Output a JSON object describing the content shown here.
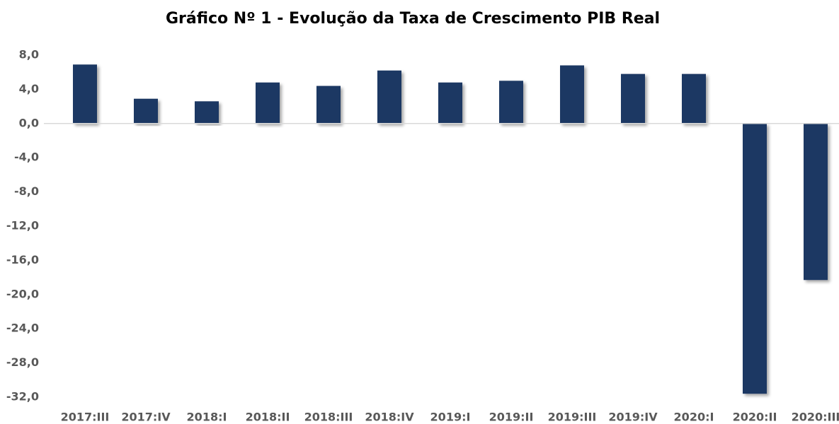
{
  "chart_data": {
    "type": "bar",
    "title": "Gráfico Nº 1 - Evolução da Taxa de Crescimento PIB Real",
    "categories": [
      "2017:III",
      "2017:IV",
      "2018:I",
      "2018:II",
      "2018:III",
      "2018:IV",
      "2019:I",
      "2019:II",
      "2019:III",
      "2019:IV",
      "2020:I",
      "2020:II",
      "2020:III"
    ],
    "values": [
      6.9,
      2.9,
      2.6,
      4.8,
      4.4,
      6.2,
      4.8,
      5.0,
      6.8,
      5.8,
      5.8,
      -31.6,
      -18.3
    ],
    "color": "#1f3864",
    "ylim": [
      -32,
      8
    ],
    "yticks": [
      {
        "value": -32,
        "label": "-32,0"
      },
      {
        "value": -28,
        "label": "-28,0"
      },
      {
        "value": -24,
        "label": "-24,0"
      },
      {
        "value": -20,
        "label": "-20,0"
      },
      {
        "value": -16,
        "label": "-16,0"
      },
      {
        "value": -12,
        "label": "-12,0"
      },
      {
        "value": -8,
        "label": "-8,0"
      },
      {
        "value": -4,
        "label": "-4,0"
      },
      {
        "value": 0,
        "label": "0,0"
      },
      {
        "value": 4,
        "label": "4,0"
      },
      {
        "value": 8,
        "label": "8,0"
      }
    ],
    "grid": false
  }
}
